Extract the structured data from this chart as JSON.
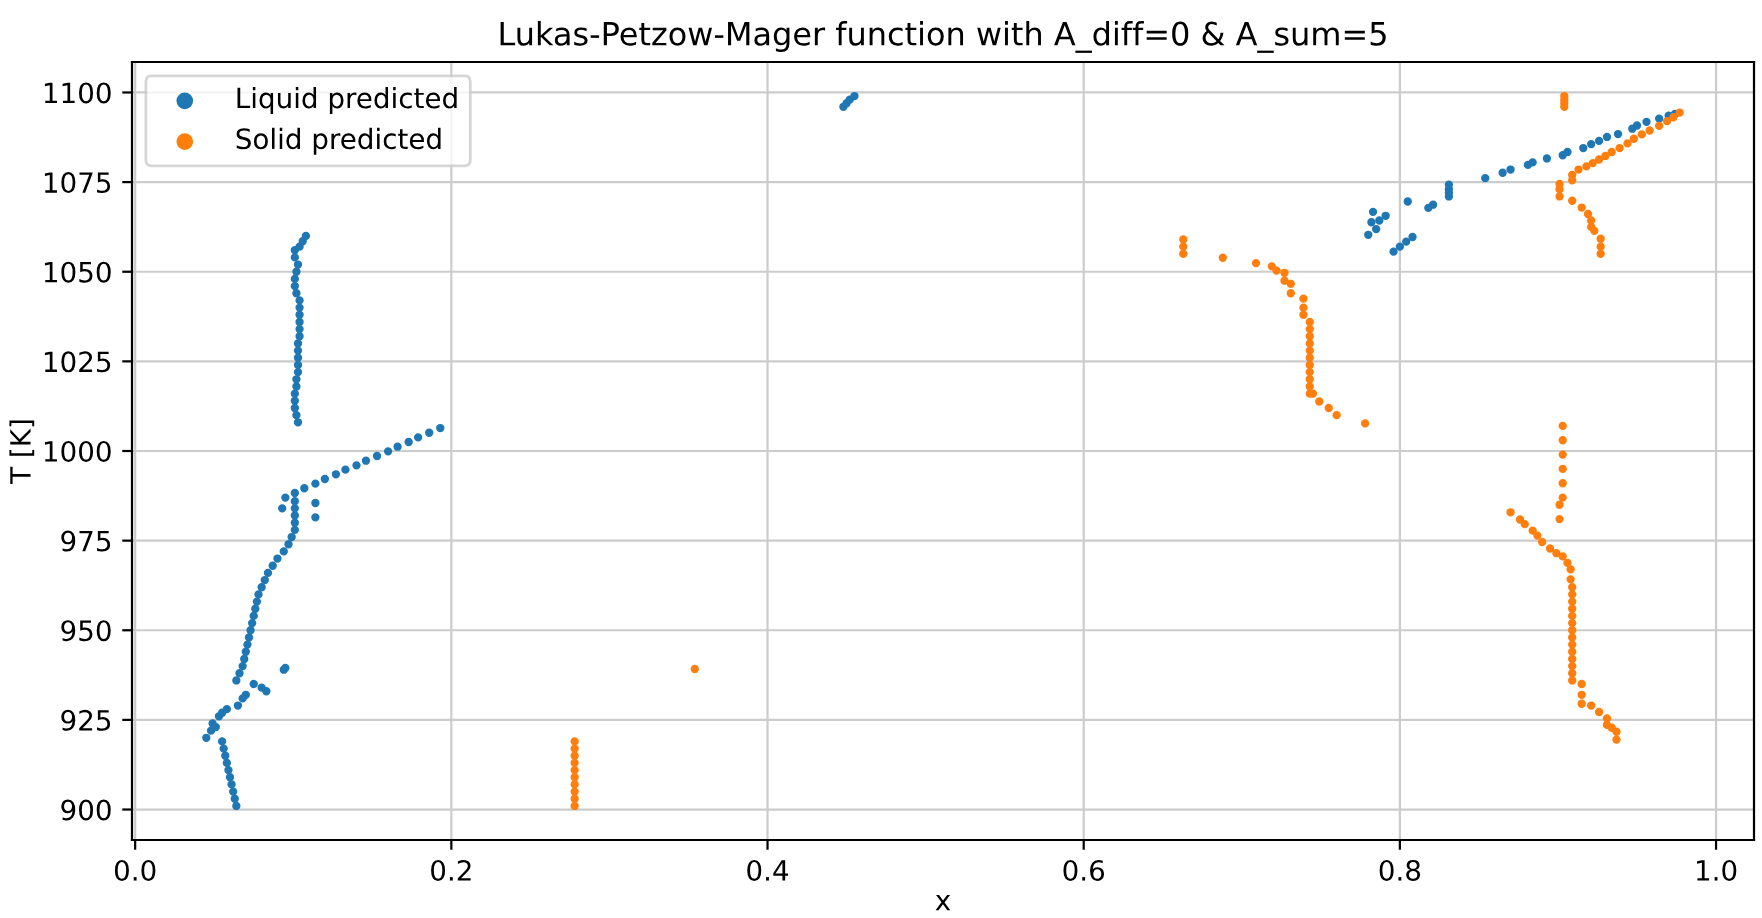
{
  "chart_data": {
    "type": "scatter",
    "title": "Lukas-Petzow-Mager function with A_diff=0 & A_sum=5",
    "xlabel": "x",
    "ylabel": "T [K]",
    "xlim": [
      -0.002,
      1.024
    ],
    "ylim": [
      891.5,
      1108.5
    ],
    "xticks": [
      {
        "value": 0,
        "label": "0.0"
      },
      {
        "value": 0.2,
        "label": "0.2"
      },
      {
        "value": 0.4,
        "label": "0.4"
      },
      {
        "value": 0.6,
        "label": "0.6"
      },
      {
        "value": 0.8,
        "label": "0.8"
      },
      {
        "value": 1,
        "label": "1.0"
      }
    ],
    "yticks": [
      900,
      925,
      950,
      975,
      1000,
      1025,
      1050,
      1075,
      1100
    ],
    "grid": true,
    "legend": "top left",
    "marker": "circle",
    "series": [
      {
        "name": "Liquid predicted",
        "color": "#1f77b4",
        "x": [
          0.064,
          0.063,
          0.062,
          0.061,
          0.06,
          0.059,
          0.058,
          0.057,
          0.056,
          0.055,
          0.045,
          0.048,
          0.049,
          0.051,
          0.053,
          0.055,
          0.058,
          0.065,
          0.068,
          0.07,
          0.075,
          0.08,
          0.083,
          0.094,
          0.095,
          0.064,
          0.066,
          0.068,
          0.069,
          0.07,
          0.071,
          0.072,
          0.073,
          0.074,
          0.075,
          0.076,
          0.077,
          0.078,
          0.08,
          0.082,
          0.084,
          0.087,
          0.09,
          0.094,
          0.097,
          0.099,
          0.101,
          0.101,
          0.101,
          0.101,
          0.101,
          0.093,
          0.114,
          0.114,
          0.095,
          0.101,
          0.107,
          0.114,
          0.12,
          0.127,
          0.133,
          0.14,
          0.146,
          0.153,
          0.16,
          0.166,
          0.173,
          0.179,
          0.186,
          0.193,
          0.103,
          0.102,
          0.101,
          0.101,
          0.101,
          0.102,
          0.102,
          0.103,
          0.103,
          0.103,
          0.103,
          0.103,
          0.104,
          0.104,
          0.104,
          0.104,
          0.104,
          0.104,
          0.102,
          0.101,
          0.101,
          0.102,
          0.103,
          0.101,
          0.101,
          0.104,
          0.106,
          0.108,
          0.448,
          0.45,
          0.452,
          0.455,
          0.78,
          0.782,
          0.783,
          0.787,
          0.791,
          0.785,
          0.796,
          0.8,
          0.804,
          0.808,
          0.805,
          0.818,
          0.821,
          0.831,
          0.831,
          0.831,
          0.831,
          0.854,
          0.865,
          0.87,
          0.881,
          0.884,
          0.893,
          0.903,
          0.906,
          0.916,
          0.921,
          0.926,
          0.931,
          0.938,
          0.947,
          0.95,
          0.956,
          0.964,
          0.97,
          0.974
        ],
        "values": [
          901,
          903,
          905,
          907,
          909,
          911,
          913,
          915,
          917,
          919,
          920,
          922,
          924,
          923,
          926,
          927,
          928,
          929,
          931,
          932,
          935,
          934,
          933,
          939,
          939.5,
          936,
          938,
          940,
          942,
          944,
          946,
          948,
          950,
          952,
          954,
          956,
          958,
          960,
          962,
          964,
          966,
          968,
          970,
          972,
          974,
          976,
          978,
          980,
          982,
          984,
          986,
          984,
          981.5,
          985.5,
          987,
          988.3,
          989.6,
          990.9,
          992.2,
          993.5,
          994.8,
          996,
          997.3,
          998.6,
          999.9,
          1001.2,
          1002.5,
          1003.8,
          1005.1,
          1006.4,
          1008,
          1010,
          1012,
          1014,
          1016,
          1018,
          1020,
          1022,
          1024,
          1026,
          1028,
          1030,
          1032,
          1034,
          1036,
          1038,
          1040,
          1042,
          1044,
          1046,
          1048,
          1050,
          1052,
          1054,
          1056,
          1057,
          1058.5,
          1060,
          1096,
          1097,
          1098,
          1099,
          1060.3,
          1063.8,
          1066.7,
          1064.3,
          1065.6,
          1061.9,
          1055.6,
          1057,
          1058.4,
          1059.7,
          1069.6,
          1067.8,
          1068.7,
          1071,
          1072,
          1073,
          1074.3,
          1076.1,
          1077.6,
          1078.5,
          1079.8,
          1080.5,
          1081.6,
          1082.5,
          1083.4,
          1084.5,
          1085.6,
          1086.5,
          1087.6,
          1088.4,
          1089.9,
          1090.8,
          1091.8,
          1092.7,
          1093.5,
          1094
        ]
      },
      {
        "name": "Solid predicted",
        "color": "#ff7f0e",
        "x": [
          0.278,
          0.278,
          0.278,
          0.278,
          0.278,
          0.278,
          0.278,
          0.278,
          0.278,
          0.278,
          0.354,
          0.663,
          0.663,
          0.663,
          0.688,
          0.709,
          0.719,
          0.722,
          0.727,
          0.727,
          0.731,
          0.731,
          0.739,
          0.739,
          0.739,
          0.743,
          0.743,
          0.743,
          0.743,
          0.743,
          0.743,
          0.743,
          0.743,
          0.743,
          0.743,
          0.743,
          0.745,
          0.749,
          0.755,
          0.76,
          0.778,
          0.904,
          0.904,
          0.904,
          0.904,
          0.901,
          0.901,
          0.901,
          0.909,
          0.909,
          0.913,
          0.918,
          0.922,
          0.926,
          0.93,
          0.934,
          0.939,
          0.944,
          0.948,
          0.953,
          0.958,
          0.964,
          0.969,
          0.973,
          0.977,
          0.909,
          0.915,
          0.919,
          0.921,
          0.921,
          0.923,
          0.927,
          0.927,
          0.927,
          0.903,
          0.903,
          0.903,
          0.903,
          0.903,
          0.903,
          0.901,
          0.901,
          0.87,
          0.876,
          0.879,
          0.884,
          0.887,
          0.89,
          0.895,
          0.899,
          0.903,
          0.906,
          0.908,
          0.908,
          0.909,
          0.909,
          0.909,
          0.909,
          0.909,
          0.909,
          0.909,
          0.909,
          0.909,
          0.909,
          0.909,
          0.909,
          0.909,
          0.909,
          0.915,
          0.915,
          0.915,
          0.921,
          0.926,
          0.931,
          0.931,
          0.934,
          0.937,
          0.937
        ],
        "values": [
          901,
          903,
          905,
          907,
          909,
          911,
          913,
          915,
          917,
          919,
          939.2,
          1055,
          1057,
          1059,
          1053.9,
          1052.4,
          1051.5,
          1050.3,
          1049.7,
          1047.5,
          1046.6,
          1044,
          1042.5,
          1040,
          1038,
          1036,
          1034,
          1032,
          1030,
          1028,
          1026,
          1024,
          1022,
          1020,
          1018,
          1016,
          1016,
          1013.8,
          1012,
          1010,
          1007.7,
          1096,
          1097,
          1098,
          1099,
          1071,
          1073,
          1074.5,
          1075.5,
          1077,
          1078.5,
          1079.4,
          1080.3,
          1081.3,
          1082.3,
          1083.4,
          1084.5,
          1085.8,
          1087.1,
          1088.3,
          1089.4,
          1090.7,
          1092,
          1093.1,
          1094.4,
          1069.8,
          1067.9,
          1066.1,
          1064.3,
          1062.5,
          1061.4,
          1059.2,
          1057,
          1055,
          1007,
          1003,
          999,
          995,
          991,
          987,
          985,
          981,
          982.9,
          980.9,
          979.6,
          977.8,
          976.4,
          974.6,
          972.8,
          971.5,
          970.6,
          968.8,
          967,
          964.2,
          962,
          960,
          958,
          956,
          954,
          952,
          950,
          948,
          946,
          944,
          942,
          940,
          938,
          936,
          935,
          932,
          929.5,
          929,
          927.2,
          925.4,
          923.6,
          922.8,
          921.7,
          919.5
        ]
      }
    ]
  }
}
